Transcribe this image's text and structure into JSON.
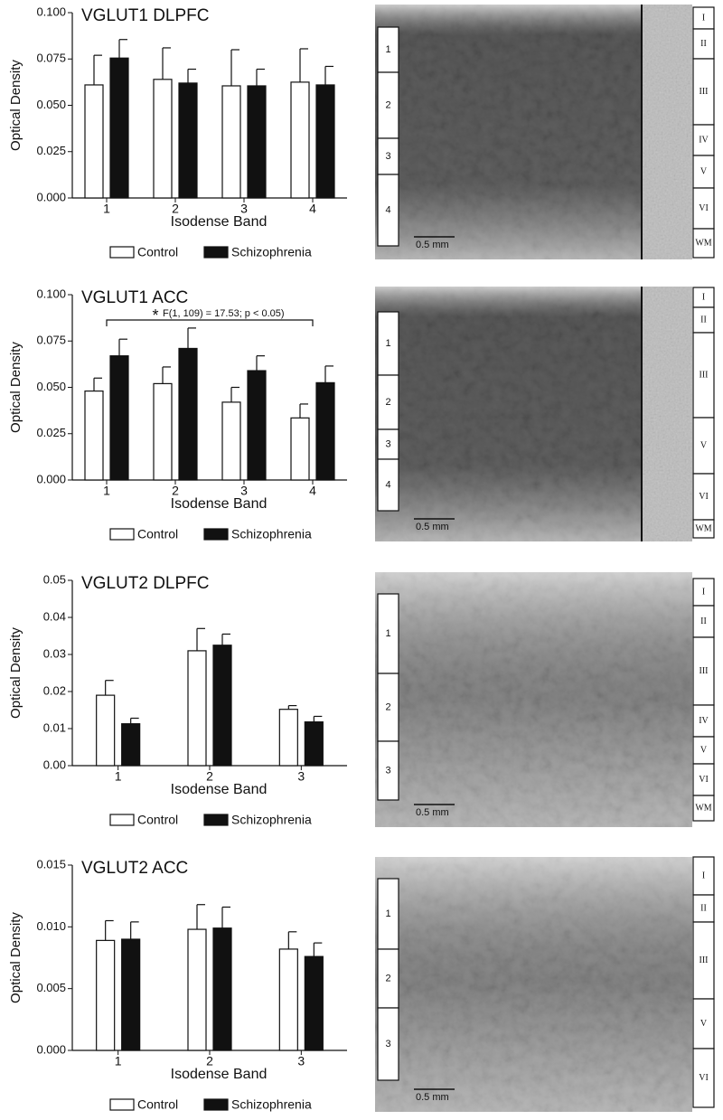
{
  "chart_data": [
    {
      "type": "bar",
      "title": "VGLUT1  DLPFC",
      "y_label": "Optical Density",
      "x_label": "Isodense Band",
      "categories": [
        "1",
        "2",
        "3",
        "4"
      ],
      "series": [
        {
          "name": "Control",
          "color": "#ffffff",
          "values": [
            0.061,
            0.064,
            0.0605,
            0.0625
          ],
          "errors": [
            0.016,
            0.017,
            0.0195,
            0.018
          ]
        },
        {
          "name": "Schizophrenia",
          "color": "#111111",
          "values": [
            0.0755,
            0.062,
            0.0605,
            0.061
          ],
          "errors": [
            0.01,
            0.0075,
            0.009,
            0.01
          ]
        }
      ],
      "ylim": [
        0,
        0.1
      ],
      "yticks": [
        {
          "value": 0,
          "label": "0.000"
        },
        {
          "value": 0.025,
          "label": "0.025"
        },
        {
          "value": 0.05,
          "label": "0.050"
        },
        {
          "value": 0.075,
          "label": "0.075"
        },
        {
          "value": 0.1,
          "label": "0.100"
        }
      ]
    },
    {
      "type": "bar",
      "title": "VGLUT1  ACC",
      "y_label": "Optical Density",
      "x_label": "Isodense Band",
      "categories": [
        "1",
        "2",
        "3",
        "4"
      ],
      "series": [
        {
          "name": "Control",
          "color": "#ffffff",
          "values": [
            0.048,
            0.052,
            0.042,
            0.0335
          ],
          "errors": [
            0.007,
            0.009,
            0.008,
            0.0075
          ]
        },
        {
          "name": "Schizophrenia",
          "color": "#111111",
          "values": [
            0.067,
            0.071,
            0.059,
            0.0525
          ],
          "errors": [
            0.009,
            0.011,
            0.008,
            0.009
          ]
        }
      ],
      "ylim": [
        0,
        0.1
      ],
      "yticks": [
        {
          "value": 0,
          "label": "0.000"
        },
        {
          "value": 0.025,
          "label": "0.025"
        },
        {
          "value": 0.05,
          "label": "0.050"
        },
        {
          "value": 0.075,
          "label": "0.075"
        },
        {
          "value": 0.1,
          "label": "0.100"
        }
      ],
      "annotation": {
        "star": "*",
        "text": "F(1, 109) = 17.53; p < 0.05)"
      }
    },
    {
      "type": "bar",
      "title": "VGLUT2  DLPFC",
      "y_label": "Optical Density",
      "x_label": "Isodense Band",
      "categories": [
        "1",
        "2",
        "3"
      ],
      "series": [
        {
          "name": "Control",
          "color": "#ffffff",
          "values": [
            0.019,
            0.031,
            0.0152
          ],
          "errors": [
            0.004,
            0.006,
            0.001
          ]
        },
        {
          "name": "Schizophrenia",
          "color": "#111111",
          "values": [
            0.0113,
            0.0325,
            0.0118
          ],
          "errors": [
            0.0015,
            0.003,
            0.0015
          ]
        }
      ],
      "ylim": [
        0,
        0.05
      ],
      "yticks": [
        {
          "value": 0,
          "label": "0.00"
        },
        {
          "value": 0.01,
          "label": "0.01"
        },
        {
          "value": 0.02,
          "label": "0.02"
        },
        {
          "value": 0.03,
          "label": "0.03"
        },
        {
          "value": 0.04,
          "label": "0.04"
        },
        {
          "value": 0.05,
          "label": "0.05"
        }
      ]
    },
    {
      "type": "bar",
      "title": "VGLUT2  ACC",
      "y_label": "Optical Density",
      "x_label": "Isodense Band",
      "categories": [
        "1",
        "2",
        "3"
      ],
      "series": [
        {
          "name": "Control",
          "color": "#ffffff",
          "values": [
            0.0089,
            0.0098,
            0.0082
          ],
          "errors": [
            0.0016,
            0.002,
            0.0014
          ]
        },
        {
          "name": "Schizophrenia",
          "color": "#111111",
          "values": [
            0.009,
            0.0099,
            0.0076
          ],
          "errors": [
            0.0014,
            0.0017,
            0.0011
          ]
        }
      ],
      "ylim": [
        0,
        0.015
      ],
      "yticks": [
        {
          "value": 0,
          "label": "0.000"
        },
        {
          "value": 0.005,
          "label": "0.005"
        },
        {
          "value": 0.01,
          "label": "0.010"
        },
        {
          "value": 0.015,
          "label": "0.015"
        }
      ]
    }
  ],
  "micrographs": [
    {
      "bands": [
        "1",
        "2",
        "3",
        "4"
      ],
      "layers": [
        "I",
        "II",
        "III",
        "IV",
        "V",
        "VI",
        "WM"
      ],
      "scale_bar": "0.5 mm"
    },
    {
      "bands": [
        "1",
        "2",
        "3",
        "4"
      ],
      "layers": [
        "I",
        "II",
        "III",
        "V",
        "VI",
        "WM"
      ],
      "scale_bar": "0.5 mm"
    },
    {
      "bands": [
        "1",
        "2",
        "3"
      ],
      "layers": [
        "I",
        "II",
        "III",
        "IV",
        "V",
        "VI",
        "WM"
      ],
      "scale_bar": "0.5 mm"
    },
    {
      "bands": [
        "1",
        "2",
        "3"
      ],
      "layers": [
        "I",
        "II",
        "III",
        "V",
        "VI"
      ],
      "scale_bar": "0.5 mm"
    }
  ]
}
